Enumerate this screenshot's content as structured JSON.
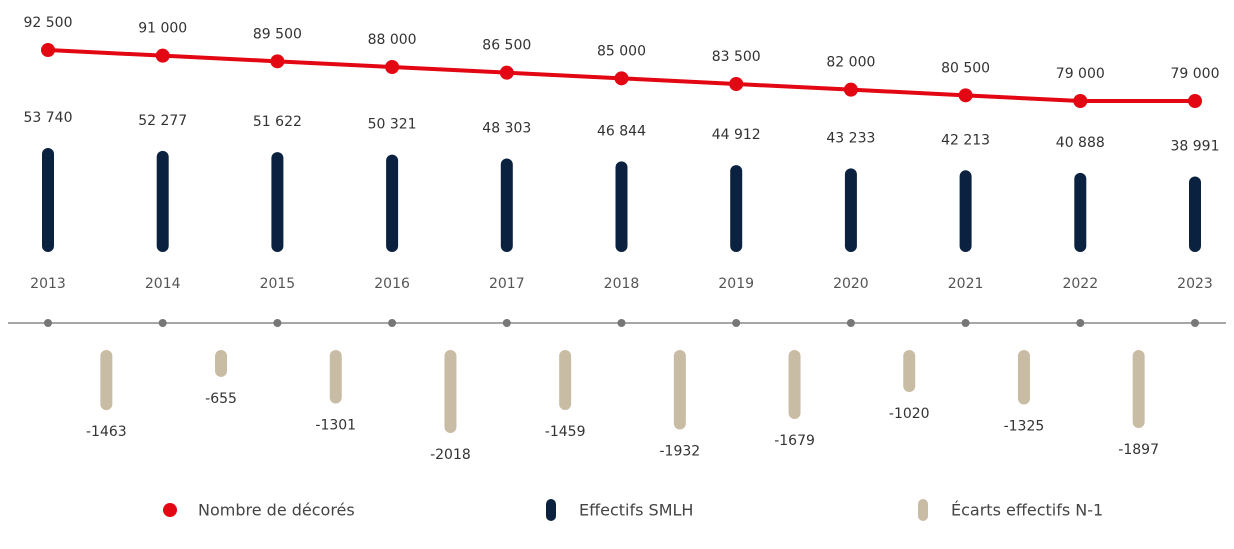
{
  "chart_data": {
    "type": "bar",
    "categories": [
      "2013",
      "2014",
      "2015",
      "2016",
      "2017",
      "2018",
      "2019",
      "2020",
      "2021",
      "2022",
      "2023"
    ],
    "legend": "bottom",
    "series": [
      {
        "name": "Nombre de décorés",
        "color": "#e30613",
        "type": "line",
        "values": [
          92500,
          91000,
          89500,
          88000,
          86500,
          85000,
          83500,
          82000,
          80500,
          79000,
          79000
        ],
        "value_labels": [
          "92 500",
          "91 000",
          "89 500",
          "88 000",
          "86 500",
          "85 000",
          "83 500",
          "82 000",
          "80 500",
          "79 000",
          "79 000"
        ]
      },
      {
        "name": "Effectifs SMLH",
        "color": "#0a2240",
        "type": "bar",
        "values": [
          53740,
          52277,
          51622,
          50321,
          48303,
          46844,
          44912,
          43233,
          42213,
          40888,
          38991
        ],
        "value_labels": [
          "53 740",
          "52 277",
          "51 622",
          "50 321",
          "48 303",
          "46 844",
          "44 912",
          "43 233",
          "42 213",
          "40 888",
          "38 991"
        ]
      },
      {
        "name": "Écarts effectifs N-1",
        "color": "#c9bca4",
        "type": "diff",
        "values": [
          null,
          -1463,
          -655,
          -1301,
          -2018,
          -1459,
          -1932,
          -1679,
          -1020,
          -1325,
          -1897
        ]
      }
    ]
  }
}
